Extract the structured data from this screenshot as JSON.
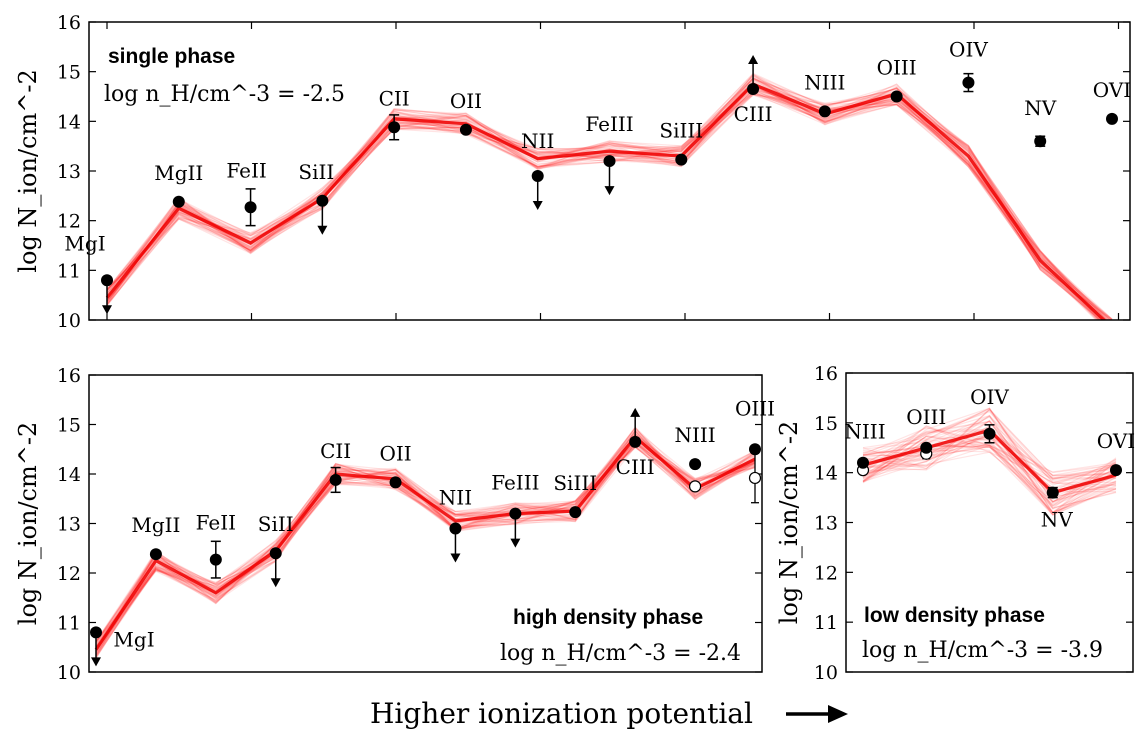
{
  "xlabel": "Higher ionization potential",
  "chart_data": [
    {
      "type": "line",
      "ylabel": "log N_ion/cm^-2",
      "ylim": [
        10,
        16
      ],
      "yticks": [
        "10",
        "11",
        "12",
        "13",
        "14",
        "15",
        "16"
      ],
      "phase_label": "single phase",
      "density_label": "log n_H/cm^-3 = -2.5",
      "x": [
        0,
        1,
        2,
        3,
        4,
        5,
        6,
        7,
        8,
        9,
        10,
        11,
        12,
        13,
        14
      ],
      "model": [
        10.45,
        12.25,
        11.55,
        12.45,
        14.05,
        13.95,
        13.25,
        13.4,
        13.3,
        14.75,
        14.15,
        14.55,
        13.3,
        11.2,
        9.85
      ],
      "points": [
        {
          "ion": "MgI",
          "x": 0,
          "y": 10.8,
          "limit": "upper"
        },
        {
          "ion": "MgII",
          "x": 1,
          "y": 12.38
        },
        {
          "ion": "FeII",
          "x": 2,
          "y": 12.27,
          "err": 0.37
        },
        {
          "ion": "SiII",
          "x": 3,
          "y": 12.4,
          "limit": "upper"
        },
        {
          "ion": "CII",
          "x": 4,
          "y": 13.88,
          "err": 0.25
        },
        {
          "ion": "OII",
          "x": 5,
          "y": 13.83
        },
        {
          "ion": "NII",
          "x": 6,
          "y": 12.9,
          "limit": "upper"
        },
        {
          "ion": "FeIII",
          "x": 7,
          "y": 13.2,
          "limit": "upper"
        },
        {
          "ion": "SiIII",
          "x": 8,
          "y": 13.23
        },
        {
          "ion": "CIII",
          "x": 9,
          "y": 14.65,
          "limit": "lower"
        },
        {
          "ion": "NIII",
          "x": 10,
          "y": 14.2
        },
        {
          "ion": "OIII",
          "x": 11,
          "y": 14.5
        },
        {
          "ion": "OIV",
          "x": 12,
          "y": 14.78,
          "err": 0.18
        },
        {
          "ion": "NV",
          "x": 13,
          "y": 13.6,
          "err": 0.1
        },
        {
          "ion": "OVI",
          "x": 14,
          "y": 14.05
        }
      ]
    },
    {
      "type": "line",
      "ylabel": "log N_ion/cm^-2",
      "ylim": [
        10,
        16
      ],
      "yticks": [
        "10",
        "11",
        "12",
        "13",
        "14",
        "15",
        "16"
      ],
      "phase_label": "high density phase",
      "density_label": "log n_H/cm^-3 = -2.4",
      "x": [
        0,
        1,
        2,
        3,
        4,
        5,
        6,
        7,
        8,
        9,
        10,
        11
      ],
      "model": [
        10.45,
        12.25,
        11.6,
        12.45,
        14.0,
        13.9,
        13.05,
        13.2,
        13.25,
        14.75,
        13.7,
        14.3
      ],
      "points": [
        {
          "ion": "MgI",
          "x": 0,
          "y": 10.8,
          "limit": "upper"
        },
        {
          "ion": "MgII",
          "x": 1,
          "y": 12.38
        },
        {
          "ion": "FeII",
          "x": 2,
          "y": 12.27,
          "err": 0.37
        },
        {
          "ion": "SiII",
          "x": 3,
          "y": 12.4,
          "limit": "upper"
        },
        {
          "ion": "CII",
          "x": 4,
          "y": 13.88,
          "err": 0.25
        },
        {
          "ion": "OII",
          "x": 5,
          "y": 13.83
        },
        {
          "ion": "NII",
          "x": 6,
          "y": 12.9,
          "limit": "upper"
        },
        {
          "ion": "FeIII",
          "x": 7,
          "y": 13.2,
          "limit": "upper"
        },
        {
          "ion": "SiIII",
          "x": 8,
          "y": 13.23
        },
        {
          "ion": "CIII",
          "x": 9,
          "y": 14.65,
          "limit": "lower"
        },
        {
          "ion": "NIII",
          "x": 10,
          "y": 14.2
        },
        {
          "ion": "OIII",
          "x": 11,
          "y": 14.5
        }
      ],
      "open_points": [
        {
          "ion": "NIII",
          "x": 10,
          "y": 13.75
        },
        {
          "ion": "OIII",
          "x": 11,
          "y": 13.92,
          "err": 0.5
        }
      ]
    },
    {
      "type": "line",
      "ylabel": "log N_ion/cm^-2",
      "ylim": [
        10,
        16
      ],
      "yticks": [
        "10",
        "11",
        "12",
        "13",
        "14",
        "15",
        "16"
      ],
      "phase_label": "low density phase",
      "density_label": "log n_H/cm^-3 = -3.9",
      "x": [
        0,
        1,
        2,
        3,
        4
      ],
      "model": [
        14.15,
        14.5,
        14.85,
        13.6,
        13.95
      ],
      "points": [
        {
          "ion": "NIII",
          "x": 0,
          "y": 14.2
        },
        {
          "ion": "OIII",
          "x": 1,
          "y": 14.5
        },
        {
          "ion": "OIV",
          "x": 2,
          "y": 14.78,
          "err": 0.18
        },
        {
          "ion": "NV",
          "x": 3,
          "y": 13.6,
          "err": 0.1
        },
        {
          "ion": "OVI",
          "x": 4,
          "y": 14.05
        }
      ],
      "open_points": [
        {
          "ion": "NIII",
          "x": 0,
          "y": 14.05
        },
        {
          "ion": "OIII",
          "x": 1,
          "y": 14.38,
          "err": 0.1
        }
      ]
    }
  ]
}
